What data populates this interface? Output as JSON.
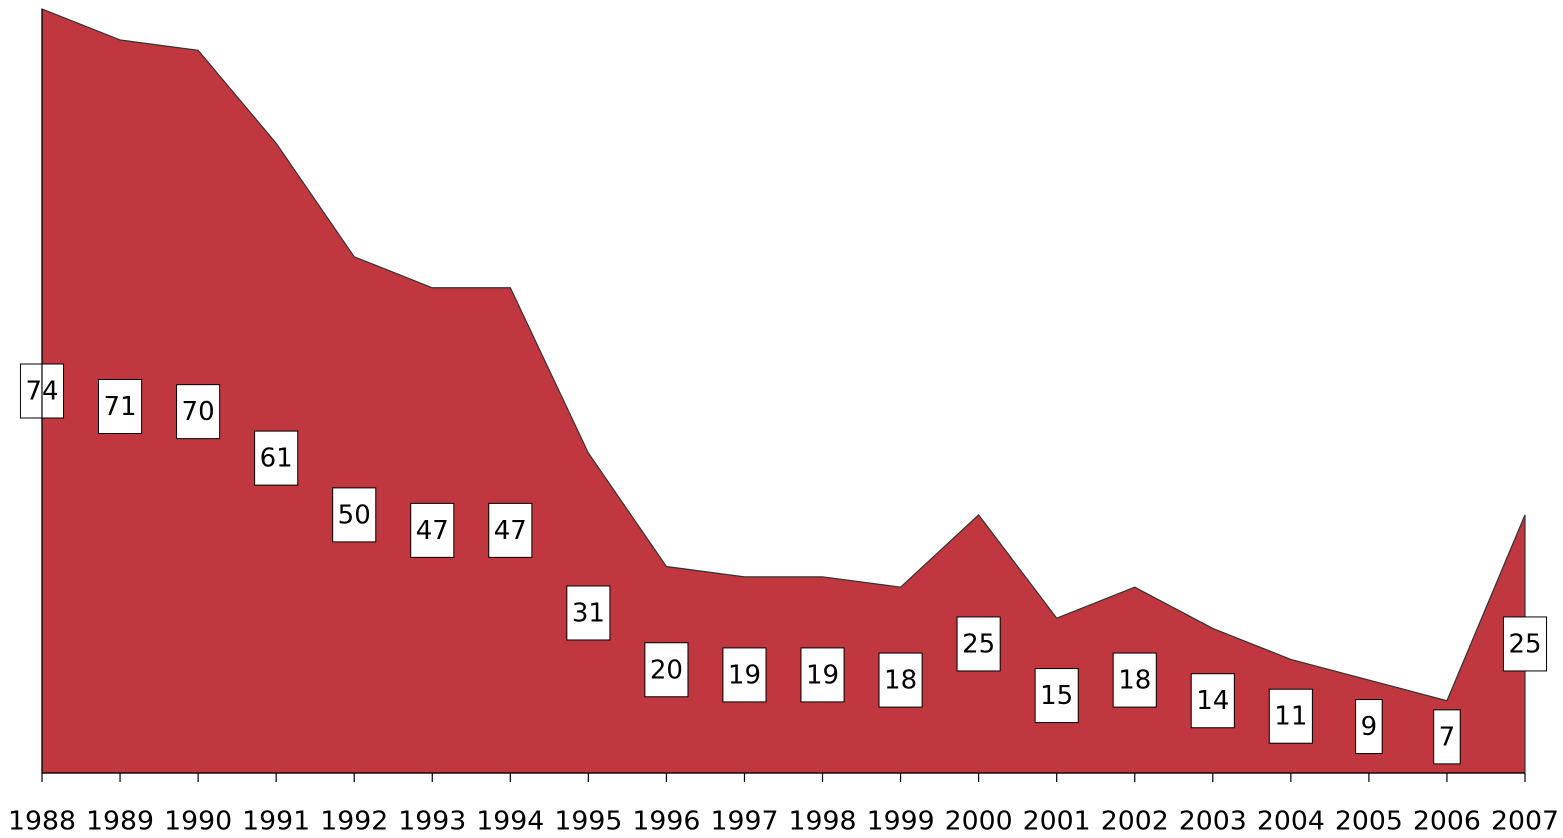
{
  "chart_data": {
    "type": "area",
    "categories": [
      "1988",
      "1989",
      "1990",
      "1991",
      "1992",
      "1993",
      "1994",
      "1995",
      "1996",
      "1997",
      "1998",
      "1999",
      "2000",
      "2001",
      "2002",
      "2003",
      "2004",
      "2005",
      "2006",
      "2007"
    ],
    "series": [
      {
        "color": "#c0373f",
        "values": [
          74,
          71,
          70,
          61,
          50,
          47,
          47,
          31,
          20,
          19,
          19,
          18,
          25,
          15,
          18,
          14,
          11,
          9,
          7,
          25
        ]
      }
    ],
    "ylim": [
      0,
      74
    ]
  }
}
